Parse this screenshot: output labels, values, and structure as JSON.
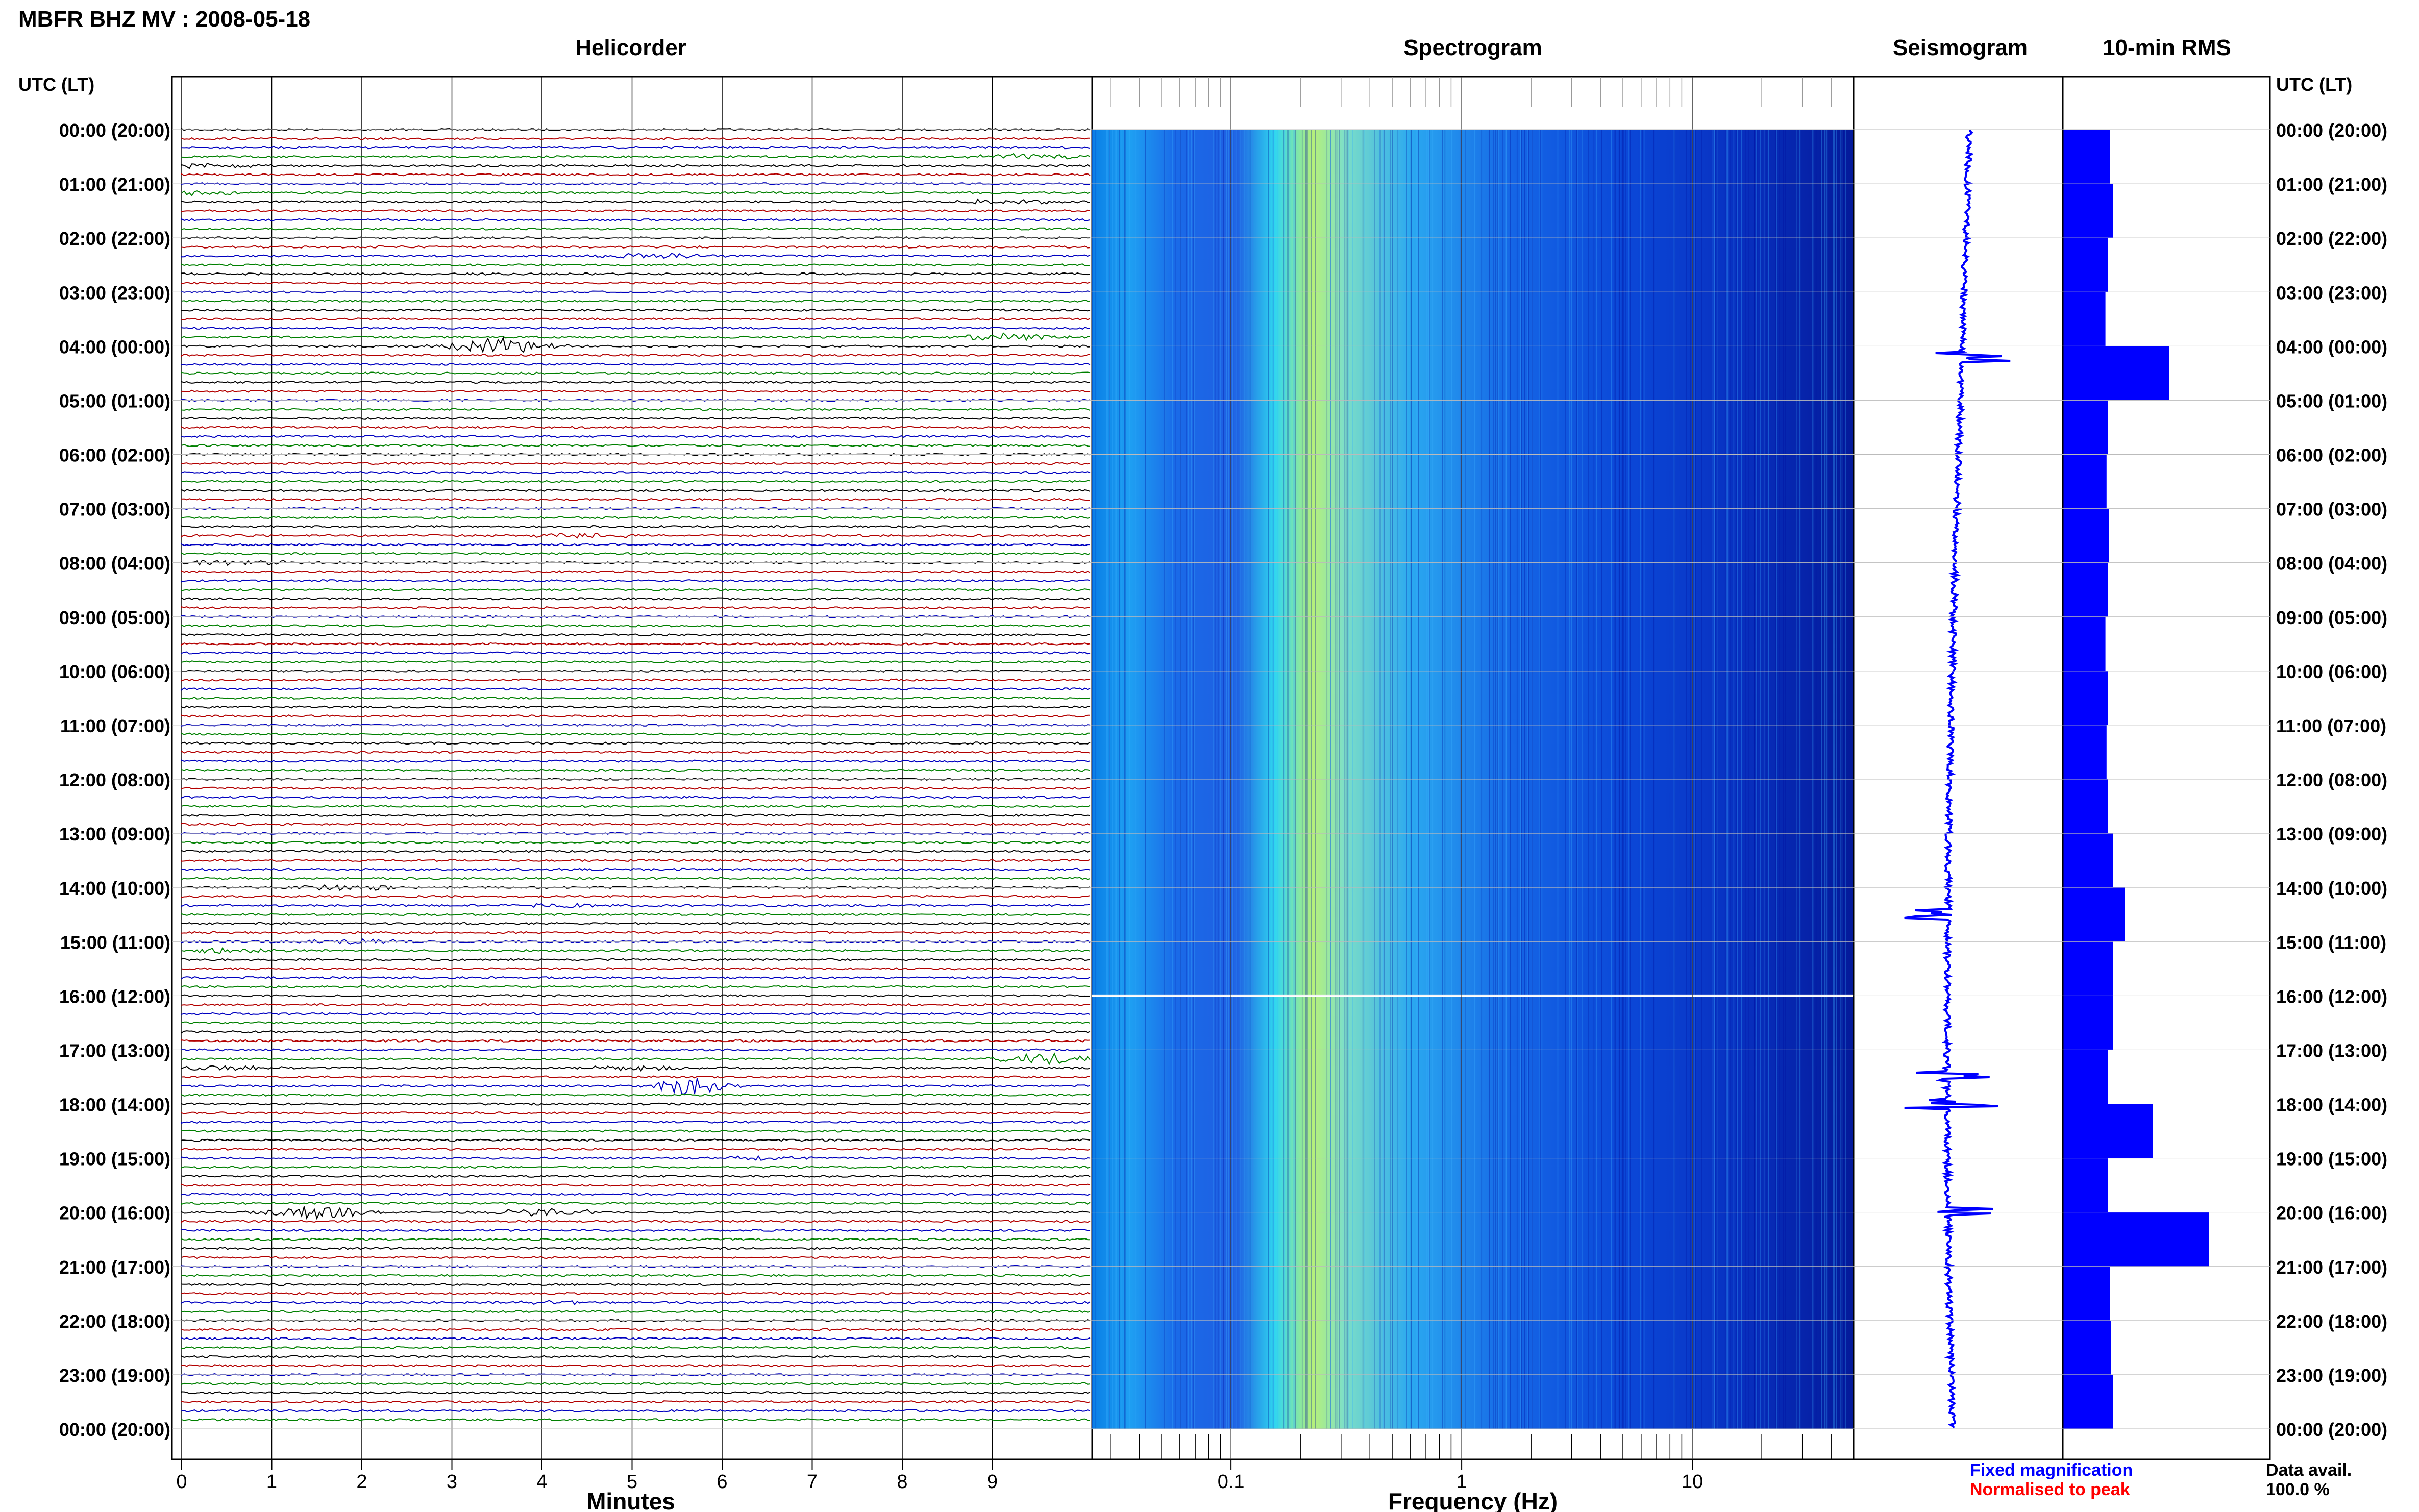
{
  "page": {
    "title": "MBFR BHZ MV : 2008-05-18",
    "legend": {
      "fixed": "Fixed magnification",
      "normalised": "Normalised to peak",
      "data_avail_label": "Data avail.",
      "data_avail_value": "100.0 %"
    }
  },
  "colors": {
    "trace_cycle": [
      "#000000",
      "#b30000",
      "#0000c0",
      "#008000"
    ],
    "fixed": "#0000ff",
    "normalised": "#ff0000",
    "rms_bar": "#0000ff",
    "seismogram": "#0000ff"
  },
  "chart_data": [
    {
      "type": "line",
      "title": "Helicorder",
      "xlabel": "Minutes",
      "ylabel": "UTC (LT)",
      "xlim": [
        0,
        10
      ],
      "x_ticks": [
        "0",
        "1",
        "2",
        "3",
        "4",
        "5",
        "6",
        "7",
        "8",
        "9"
      ],
      "y_ticks": [
        "00:00 (20:00)",
        "01:00 (21:00)",
        "02:00 (22:00)",
        "03:00 (23:00)",
        "04:00 (00:00)",
        "05:00 (01:00)",
        "06:00 (02:00)",
        "07:00 (03:00)",
        "08:00 (04:00)",
        "09:00 (05:00)",
        "10:00 (06:00)",
        "11:00 (07:00)",
        "12:00 (08:00)",
        "13:00 (09:00)",
        "14:00 (10:00)",
        "15:00 (11:00)",
        "16:00 (12:00)",
        "17:00 (13:00)",
        "18:00 (14:00)",
        "19:00 (15:00)",
        "20:00 (16:00)",
        "21:00 (17:00)",
        "22:00 (18:00)",
        "23:00 (19:00)",
        "00:00 (20:00)"
      ],
      "rows": 144,
      "grid": true,
      "events": [
        {
          "row": 3,
          "minute": 9.4,
          "amp": 0.35
        },
        {
          "row": 4,
          "minute": 0.3,
          "amp": 0.3
        },
        {
          "row": 7,
          "minute": 0.1,
          "amp": 0.3
        },
        {
          "row": 8,
          "minute": 9.1,
          "amp": 0.3
        },
        {
          "row": 14,
          "minute": 5.2,
          "amp": 0.4
        },
        {
          "row": 24,
          "minute": 3.5,
          "amp": 1.0
        },
        {
          "row": 23,
          "minute": 9.2,
          "amp": 0.5
        },
        {
          "row": 45,
          "minute": 4.5,
          "amp": 0.35
        },
        {
          "row": 48,
          "minute": 0.6,
          "amp": 0.35
        },
        {
          "row": 84,
          "minute": 1.8,
          "amp": 0.35
        },
        {
          "row": 86,
          "minute": 4.3,
          "amp": 0.25
        },
        {
          "row": 90,
          "minute": 1.9,
          "amp": 0.35
        },
        {
          "row": 91,
          "minute": 0.5,
          "amp": 0.3
        },
        {
          "row": 104,
          "minute": 5.1,
          "amp": 0.3
        },
        {
          "row": 104,
          "minute": 0.3,
          "amp": 0.35
        },
        {
          "row": 103,
          "minute": 9.6,
          "amp": 0.6
        },
        {
          "row": 106,
          "minute": 5.7,
          "amp": 1.6
        },
        {
          "row": 114,
          "minute": 6.3,
          "amp": 0.2
        },
        {
          "row": 120,
          "minute": 1.5,
          "amp": 0.8
        },
        {
          "row": 120,
          "minute": 4.0,
          "amp": 0.5
        },
        {
          "row": 130,
          "minute": 4.2,
          "amp": 0.25
        }
      ]
    },
    {
      "type": "heatmap",
      "title": "Spectrogram",
      "xlabel": "Frequency (Hz)",
      "x_scale": "log",
      "xlim": [
        0.025,
        50
      ],
      "x_ticks": [
        "0.1",
        "1",
        "10"
      ],
      "colormap": [
        "#00008a",
        "#0000ff",
        "#00a0ff",
        "#20ffff",
        "#a0ff60",
        "#ffff00"
      ],
      "peak_band_hz": [
        0.2,
        0.35
      ],
      "gap_hour": 16
    },
    {
      "type": "line",
      "title": "Seismogram",
      "ylabel": "UTC (LT)",
      "events_hour": [
        4.2,
        14.5,
        17.5,
        18.0,
        20.0
      ]
    },
    {
      "type": "bar",
      "title": "10-min RMS",
      "ylabel": "UTC (LT)",
      "hours": [
        0,
        1,
        2,
        3,
        4,
        5,
        6,
        7,
        8,
        9,
        10,
        11,
        12,
        13,
        14,
        15,
        16,
        17,
        18,
        19,
        20,
        21,
        22,
        23
      ],
      "values": [
        0.42,
        0.45,
        0.4,
        0.38,
        0.95,
        0.4,
        0.39,
        0.41,
        0.4,
        0.38,
        0.4,
        0.39,
        0.4,
        0.45,
        0.55,
        0.45,
        0.45,
        0.4,
        0.8,
        0.4,
        1.3,
        0.42,
        0.43,
        0.45
      ]
    }
  ]
}
